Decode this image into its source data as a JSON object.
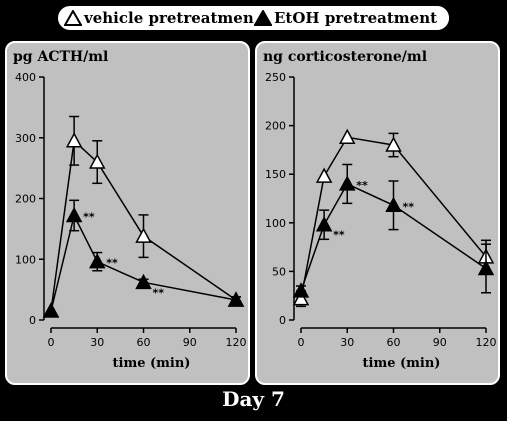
{
  "legend": [
    {
      "label": "vehicle pretreatment",
      "marker": "open-triangle"
    },
    {
      "label": "EtOH pretreatment",
      "marker": "filled-triangle"
    }
  ],
  "caption": "Day 7",
  "colors": {
    "background": "#000000",
    "panel": "#c0c0c0",
    "series": "#000000",
    "caption": "#ffffff"
  },
  "chart_data": [
    {
      "type": "line",
      "title": "pg ACTH/ml",
      "xlabel": "time (min)",
      "ylabel": "",
      "x_ticks": [
        0,
        30,
        60,
        90,
        120
      ],
      "y_ticks": [
        0,
        100,
        200,
        300,
        400
      ],
      "xlim": [
        0,
        120
      ],
      "ylim": [
        0,
        400
      ],
      "grid": false,
      "series": [
        {
          "name": "vehicle pretreatment",
          "marker": "open-triangle",
          "x": [
            0,
            15,
            30,
            60,
            120
          ],
          "y": [
            15,
            295,
            260,
            138,
            33
          ],
          "err": [
            0,
            40,
            35,
            35,
            5
          ]
        },
        {
          "name": "EtOH pretreatment",
          "marker": "filled-triangle",
          "x": [
            0,
            15,
            30,
            60,
            120
          ],
          "y": [
            15,
            172,
            96,
            62,
            33
          ],
          "err": [
            0,
            25,
            15,
            5,
            5
          ]
        }
      ],
      "annotations": [
        {
          "series": 1,
          "x": 15,
          "y": 172,
          "text": "**",
          "position": "right"
        },
        {
          "series": 1,
          "x": 30,
          "y": 96,
          "text": "**",
          "position": "right"
        },
        {
          "series": 1,
          "x": 60,
          "y": 62,
          "text": "**",
          "position": "below-right"
        }
      ]
    },
    {
      "type": "line",
      "title": "ng corticosterone/ml",
      "xlabel": "time (min)",
      "ylabel": "",
      "x_ticks": [
        0,
        30,
        60,
        90,
        120
      ],
      "y_ticks": [
        0,
        50,
        100,
        150,
        200,
        250
      ],
      "xlim": [
        0,
        120
      ],
      "ylim": [
        0,
        250
      ],
      "grid": false,
      "series": [
        {
          "name": "vehicle pretreatment",
          "marker": "open-triangle",
          "x": [
            0,
            15,
            30,
            60,
            120
          ],
          "y": [
            22,
            148,
            188,
            180,
            65
          ],
          "err": [
            8,
            0,
            0,
            12,
            17
          ]
        },
        {
          "name": "EtOH pretreatment",
          "marker": "filled-triangle",
          "x": [
            0,
            15,
            30,
            60,
            120
          ],
          "y": [
            30,
            98,
            140,
            118,
            53
          ],
          "err": [
            5,
            15,
            20,
            25,
            25
          ]
        }
      ],
      "annotations": [
        {
          "series": 1,
          "x": 15,
          "y": 98,
          "text": "**",
          "position": "below-right"
        },
        {
          "series": 1,
          "x": 30,
          "y": 140,
          "text": "**",
          "position": "right"
        },
        {
          "series": 1,
          "x": 60,
          "y": 118,
          "text": "**",
          "position": "right"
        }
      ]
    }
  ]
}
